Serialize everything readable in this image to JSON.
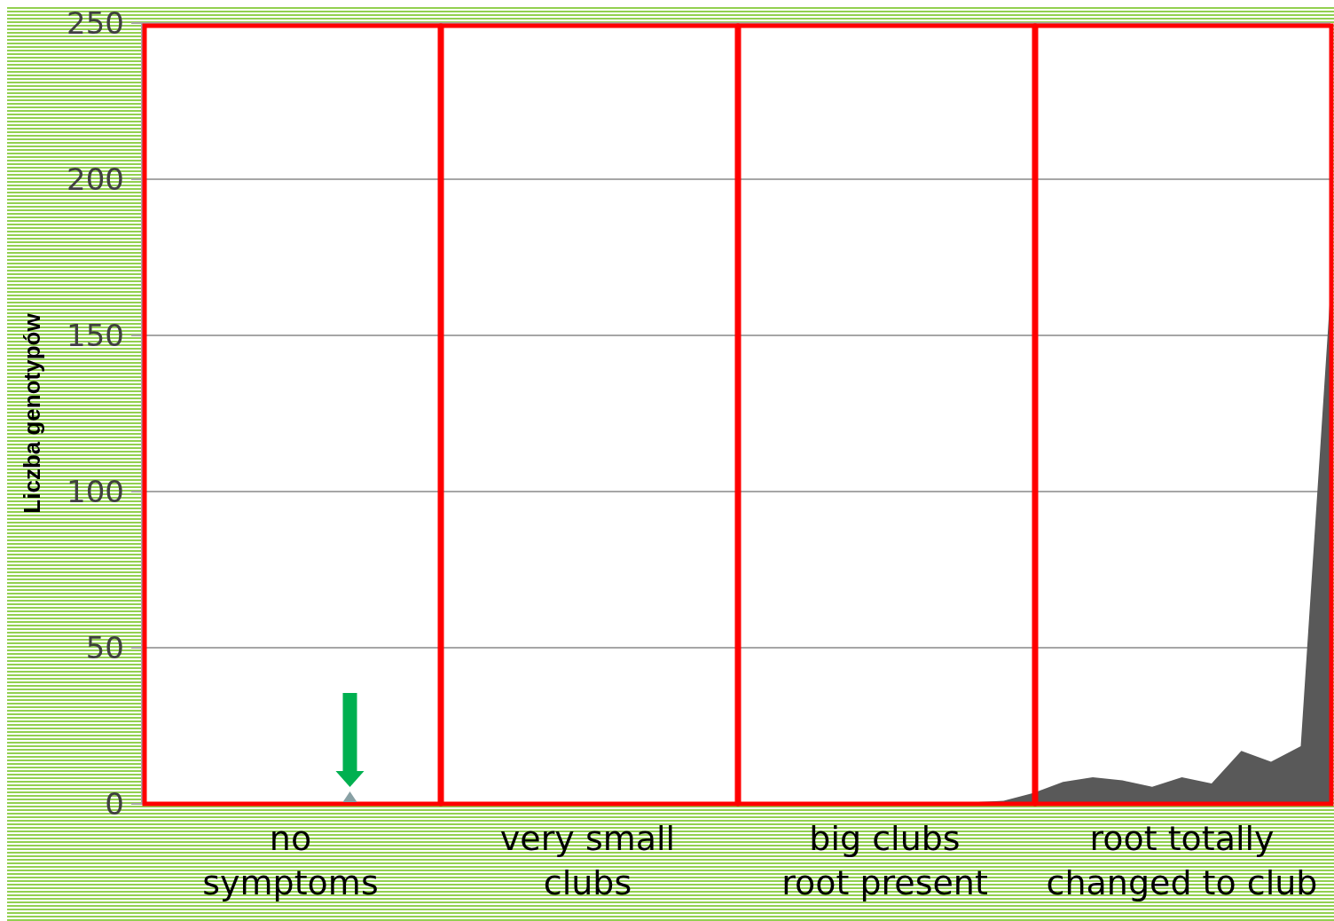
{
  "chart_data": {
    "type": "area",
    "ylabel": "Liczba genotypów",
    "categories": [
      null,
      null,
      null,
      null,
      null,
      null,
      null,
      null,
      null,
      null,
      null,
      null,
      null,
      null,
      null,
      null,
      null,
      null,
      null,
      null,
      null,
      null,
      null,
      null,
      null,
      null,
      null,
      null,
      null,
      null,
      null,
      null,
      null,
      null,
      null,
      null,
      null,
      null,
      null,
      null,
      null
    ],
    "ylim": [
      0,
      250
    ],
    "yticks": [
      0,
      50,
      100,
      150,
      200,
      250
    ],
    "grid": "y",
    "series": [
      {
        "color": "#595959",
        "values": [
          0,
          0,
          0,
          0,
          0,
          0,
          0,
          0,
          0,
          0,
          0,
          0,
          0,
          0,
          0,
          0,
          0,
          0,
          0,
          0,
          0,
          0,
          0,
          0,
          0,
          0,
          0.5,
          0.5,
          0.5,
          1,
          3.5,
          7,
          8.5,
          7.5,
          5.5,
          8.5,
          6.5,
          17,
          13.5,
          18.5,
          164
        ]
      }
    ],
    "annotations": [
      "no\nsymptoms",
      "very small\nclubs",
      "big clubs\nroot present",
      "root totally\nchanged to club"
    ]
  }
}
